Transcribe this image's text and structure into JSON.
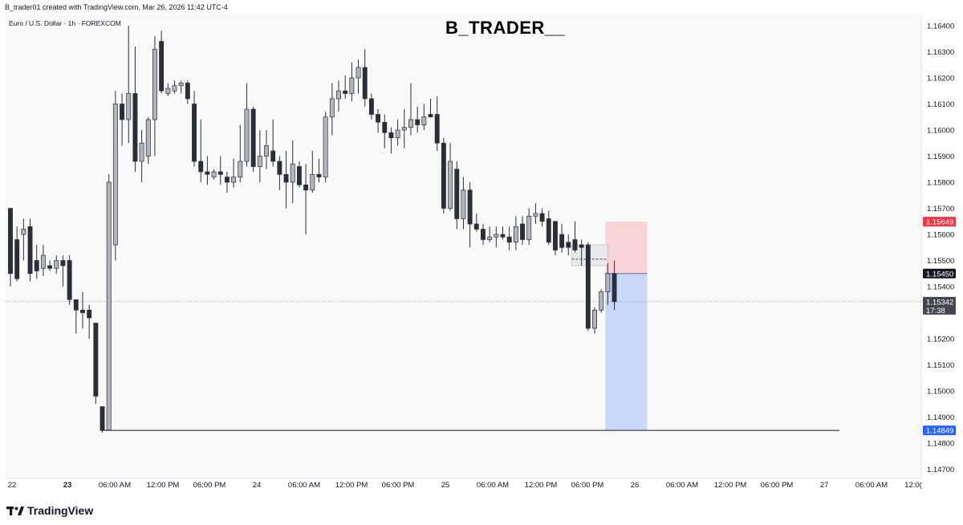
{
  "header": {
    "credit": "B_trader01 created with TradingView.com, Mar 26, 2026 11:42 UTC-4",
    "symbol": "Euro / U.S. Dollar · 1h · FOREXCOM",
    "watermark": "B_TRADER__"
  },
  "brand": {
    "name": "TradingView"
  },
  "colors": {
    "bear_candle": "#2a2e39",
    "bull_candle": "#b2b5be",
    "wick": "#2a2e39",
    "stop_zone": "#f9d5d8",
    "target_zone": "#c9d7f8",
    "stop_badge": "#f23645",
    "target_badge": "#2962ff",
    "entry_badge": "#131722",
    "current_badge": "#434651"
  },
  "chart_data": {
    "type": "candlestick",
    "symbol": "EURUSD",
    "interval": "1h",
    "ylim": [
      1.1465,
      1.1642
    ],
    "y_ticks": [
      "1.16400",
      "1.16300",
      "1.16200",
      "1.16100",
      "1.16000",
      "1.15900",
      "1.15800",
      "1.15700",
      "1.15600",
      "1.15500",
      "1.15400",
      "1.15200",
      "1.15100",
      "1.15000",
      "1.14900",
      "1.14800",
      "1.14700"
    ],
    "x_ticks": [
      "22",
      "23",
      "06:00 AM",
      "12:00 PM",
      "06:00 PM",
      "24",
      "06:00 AM",
      "12:00 PM",
      "06:00 PM",
      "25",
      "06:00 AM",
      "12:00 PM",
      "06:00 PM",
      "26",
      "06:00 AM",
      "12:00 PM",
      "06:00 PM",
      "27",
      "06:00 AM",
      "12:0("
    ],
    "ohlc": [
      [
        1.157,
        1.157,
        1.154,
        1.1545
      ],
      [
        1.1558,
        1.1563,
        1.1542,
        1.1543
      ],
      [
        1.156,
        1.1566,
        1.155,
        1.1562
      ],
      [
        1.1563,
        1.1566,
        1.1542,
        1.1545
      ],
      [
        1.155,
        1.1556,
        1.1543,
        1.1546
      ],
      [
        1.1547,
        1.1556,
        1.1544,
        1.1552
      ],
      [
        1.1548,
        1.155,
        1.1546,
        1.1547
      ],
      [
        1.1547,
        1.1552,
        1.1545,
        1.155
      ],
      [
        1.155,
        1.1552,
        1.154,
        1.1548
      ],
      [
        1.155,
        1.1552,
        1.1533,
        1.1535
      ],
      [
        1.1535,
        1.1535,
        1.1522,
        1.1531
      ],
      [
        1.1531,
        1.1538,
        1.1524,
        1.153
      ],
      [
        1.1531,
        1.1533,
        1.152,
        1.1528
      ],
      [
        1.1526,
        1.1526,
        1.1495,
        1.1498
      ],
      [
        1.1494,
        1.1494,
        1.1484,
        1.1485
      ],
      [
        1.1485,
        1.1583,
        1.1485,
        1.158
      ],
      [
        1.1556,
        1.1615,
        1.155,
        1.161
      ],
      [
        1.161,
        1.1614,
        1.1594,
        1.1604
      ],
      [
        1.1604,
        1.164,
        1.1595,
        1.1614
      ],
      [
        1.1614,
        1.1632,
        1.1584,
        1.1588
      ],
      [
        1.1588,
        1.16,
        1.158,
        1.1595
      ],
      [
        1.159,
        1.1605,
        1.1587,
        1.1604
      ],
      [
        1.1604,
        1.1636,
        1.159,
        1.1631
      ],
      [
        1.1634,
        1.1638,
        1.1614,
        1.1615
      ],
      [
        1.1614,
        1.1618,
        1.1613,
        1.1616
      ],
      [
        1.1615,
        1.1619,
        1.1614,
        1.1617
      ],
      [
        1.1617,
        1.1619,
        1.1614,
        1.1618
      ],
      [
        1.1618,
        1.1619,
        1.161,
        1.1612
      ],
      [
        1.161,
        1.1615,
        1.1586,
        1.1588
      ],
      [
        1.1588,
        1.1604,
        1.158,
        1.1584
      ],
      [
        1.1584,
        1.159,
        1.1579,
        1.1583
      ],
      [
        1.1582,
        1.1585,
        1.1581,
        1.1584
      ],
      [
        1.1584,
        1.159,
        1.1579,
        1.1583
      ],
      [
        1.1582,
        1.1584,
        1.1576,
        1.158
      ],
      [
        1.158,
        1.1589,
        1.1578,
        1.1582
      ],
      [
        1.1582,
        1.1602,
        1.158,
        1.1588
      ],
      [
        1.1588,
        1.1618,
        1.1586,
        1.1608
      ],
      [
        1.1608,
        1.1609,
        1.1584,
        1.1586
      ],
      [
        1.1586,
        1.16,
        1.158,
        1.159
      ],
      [
        1.159,
        1.16,
        1.1585,
        1.1594
      ],
      [
        1.1592,
        1.1604,
        1.1586,
        1.1588
      ],
      [
        1.1588,
        1.159,
        1.1577,
        1.1583
      ],
      [
        1.1583,
        1.1592,
        1.157,
        1.158
      ],
      [
        1.158,
        1.1596,
        1.1572,
        1.1587
      ],
      [
        1.1586,
        1.1588,
        1.1578,
        1.1579
      ],
      [
        1.1579,
        1.1587,
        1.156,
        1.1577
      ],
      [
        1.1577,
        1.1592,
        1.1576,
        1.1583
      ],
      [
        1.1583,
        1.1589,
        1.158,
        1.1582
      ],
      [
        1.1582,
        1.1607,
        1.158,
        1.1605
      ],
      [
        1.1605,
        1.1618,
        1.1598,
        1.1612
      ],
      [
        1.1612,
        1.1619,
        1.1607,
        1.1615
      ],
      [
        1.1615,
        1.1621,
        1.1612,
        1.1614
      ],
      [
        1.1614,
        1.1626,
        1.1611,
        1.162
      ],
      [
        1.162,
        1.1627,
        1.1614,
        1.1624
      ],
      [
        1.1624,
        1.1631,
        1.1609,
        1.1612
      ],
      [
        1.1612,
        1.1614,
        1.1604,
        1.1606
      ],
      [
        1.1606,
        1.1608,
        1.1599,
        1.1603
      ],
      [
        1.1603,
        1.1606,
        1.1593,
        1.1599
      ],
      [
        1.1599,
        1.1601,
        1.1591,
        1.1597
      ],
      [
        1.1597,
        1.1604,
        1.1594,
        1.16
      ],
      [
        1.16,
        1.1608,
        1.1593,
        1.1601
      ],
      [
        1.1601,
        1.1618,
        1.1598,
        1.1604
      ],
      [
        1.1604,
        1.1609,
        1.1599,
        1.1602
      ],
      [
        1.1602,
        1.161,
        1.16,
        1.1605
      ],
      [
        1.1606,
        1.1612,
        1.1605,
        1.1605
      ],
      [
        1.1606,
        1.1613,
        1.1592,
        1.1595
      ],
      [
        1.1595,
        1.1597,
        1.1568,
        1.157
      ],
      [
        1.157,
        1.1595,
        1.1569,
        1.1588
      ],
      [
        1.1585,
        1.1588,
        1.1562,
        1.1566
      ],
      [
        1.1566,
        1.1582,
        1.1562,
        1.1577
      ],
      [
        1.1577,
        1.158,
        1.1555,
        1.1564
      ],
      [
        1.1564,
        1.1568,
        1.1561,
        1.1562
      ],
      [
        1.1562,
        1.1564,
        1.1556,
        1.1558
      ],
      [
        1.1558,
        1.1563,
        1.1557,
        1.1559
      ],
      [
        1.1559,
        1.1563,
        1.1555,
        1.156
      ],
      [
        1.156,
        1.1563,
        1.1558,
        1.1559
      ],
      [
        1.1559,
        1.1563,
        1.1554,
        1.1557
      ],
      [
        1.1557,
        1.1567,
        1.1554,
        1.1563
      ],
      [
        1.1564,
        1.1567,
        1.1556,
        1.1558
      ],
      [
        1.1558,
        1.157,
        1.1556,
        1.1567
      ],
      [
        1.1567,
        1.1572,
        1.1564,
        1.1568
      ],
      [
        1.1568,
        1.157,
        1.1563,
        1.1565
      ],
      [
        1.1566,
        1.1569,
        1.1556,
        1.1557
      ],
      [
        1.1565,
        1.1565,
        1.1552,
        1.1554
      ],
      [
        1.156,
        1.1564,
        1.1553,
        1.1555
      ],
      [
        1.1557,
        1.156,
        1.1552,
        1.1555
      ],
      [
        1.1558,
        1.1565,
        1.1553,
        1.1554
      ],
      [
        1.1556,
        1.1558,
        1.1548,
        1.1555
      ],
      [
        1.1556,
        1.1557,
        1.1523,
        1.1524
      ],
      [
        1.1524,
        1.1532,
        1.1522,
        1.1531
      ],
      [
        1.1531,
        1.1539,
        1.153,
        1.1538
      ],
      [
        1.1538,
        1.1549,
        1.1533,
        1.1545
      ],
      [
        1.1545,
        1.155,
        1.1531,
        1.15342
      ]
    ],
    "horizontal_level": 1.14849,
    "position": {
      "type": "short",
      "entry": 1.1545,
      "stop": 1.15649,
      "target": 1.14849
    },
    "range_box": {
      "top": 1.1556,
      "bottom": 1.1548
    },
    "current_price": 1.15342,
    "price_labels": {
      "stop": "1.15649",
      "entry": "1.15450",
      "current": "1.15342",
      "countdown": "17:38",
      "target": "1.14849"
    }
  }
}
